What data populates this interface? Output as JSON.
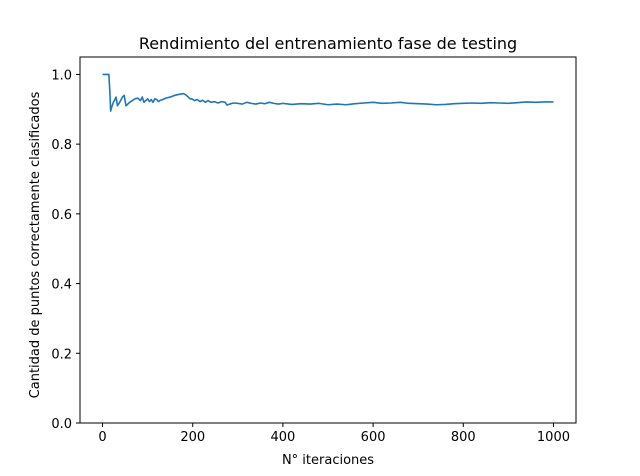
{
  "chart_data": {
    "type": "line",
    "title": "Rendimiento del entrenamiento fase de testing",
    "xlabel": "N° iteraciones",
    "ylabel": "Cantidad de puntos correctamente clasificados",
    "xlim": [
      -50,
      1050
    ],
    "ylim": [
      0.0,
      1.05
    ],
    "xticks": [
      0,
      200,
      400,
      600,
      800,
      1000
    ],
    "xtick_labels": [
      "0",
      "200",
      "400",
      "600",
      "800",
      "1000"
    ],
    "yticks": [
      0.0,
      0.2,
      0.4,
      0.6,
      0.8,
      1.0
    ],
    "ytick_labels": [
      "0.0",
      "0.2",
      "0.4",
      "0.6",
      "0.8",
      "1.0"
    ],
    "grid": false,
    "line_color": "#1f77b4",
    "series": [
      {
        "x": [
          0,
          10,
          14,
          16,
          18,
          20,
          24,
          30,
          33,
          38,
          44,
          48,
          52,
          56,
          60,
          66,
          72,
          78,
          84,
          88,
          92,
          96,
          100,
          104,
          108,
          112,
          116,
          120,
          124,
          128,
          134,
          140,
          150,
          160,
          170,
          180,
          186,
          190,
          194,
          198,
          204,
          210,
          216,
          222,
          228,
          234,
          240,
          248,
          256,
          264,
          272,
          276,
          282,
          290,
          300,
          310,
          320,
          330,
          340,
          350,
          360,
          370,
          380,
          390,
          400,
          420,
          440,
          460,
          480,
          500,
          520,
          540,
          560,
          580,
          600,
          620,
          640,
          660,
          680,
          700,
          720,
          740,
          760,
          780,
          800,
          820,
          840,
          860,
          880,
          900,
          920,
          940,
          960,
          980,
          1000
        ],
        "y": [
          1.0,
          1.0,
          1.0,
          0.955,
          0.895,
          0.905,
          0.92,
          0.935,
          0.91,
          0.92,
          0.935,
          0.94,
          0.91,
          0.915,
          0.92,
          0.925,
          0.93,
          0.932,
          0.925,
          0.935,
          0.92,
          0.925,
          0.93,
          0.922,
          0.928,
          0.92,
          0.93,
          0.928,
          0.922,
          0.926,
          0.928,
          0.932,
          0.935,
          0.94,
          0.943,
          0.945,
          0.94,
          0.935,
          0.93,
          0.93,
          0.925,
          0.928,
          0.922,
          0.926,
          0.92,
          0.925,
          0.92,
          0.922,
          0.918,
          0.922,
          0.92,
          0.912,
          0.915,
          0.918,
          0.917,
          0.915,
          0.92,
          0.917,
          0.915,
          0.918,
          0.916,
          0.92,
          0.917,
          0.915,
          0.917,
          0.914,
          0.916,
          0.915,
          0.917,
          0.913,
          0.915,
          0.913,
          0.916,
          0.918,
          0.92,
          0.917,
          0.918,
          0.92,
          0.917,
          0.916,
          0.915,
          0.913,
          0.914,
          0.916,
          0.917,
          0.918,
          0.917,
          0.919,
          0.918,
          0.917,
          0.919,
          0.921,
          0.92,
          0.921,
          0.921
        ]
      }
    ]
  }
}
